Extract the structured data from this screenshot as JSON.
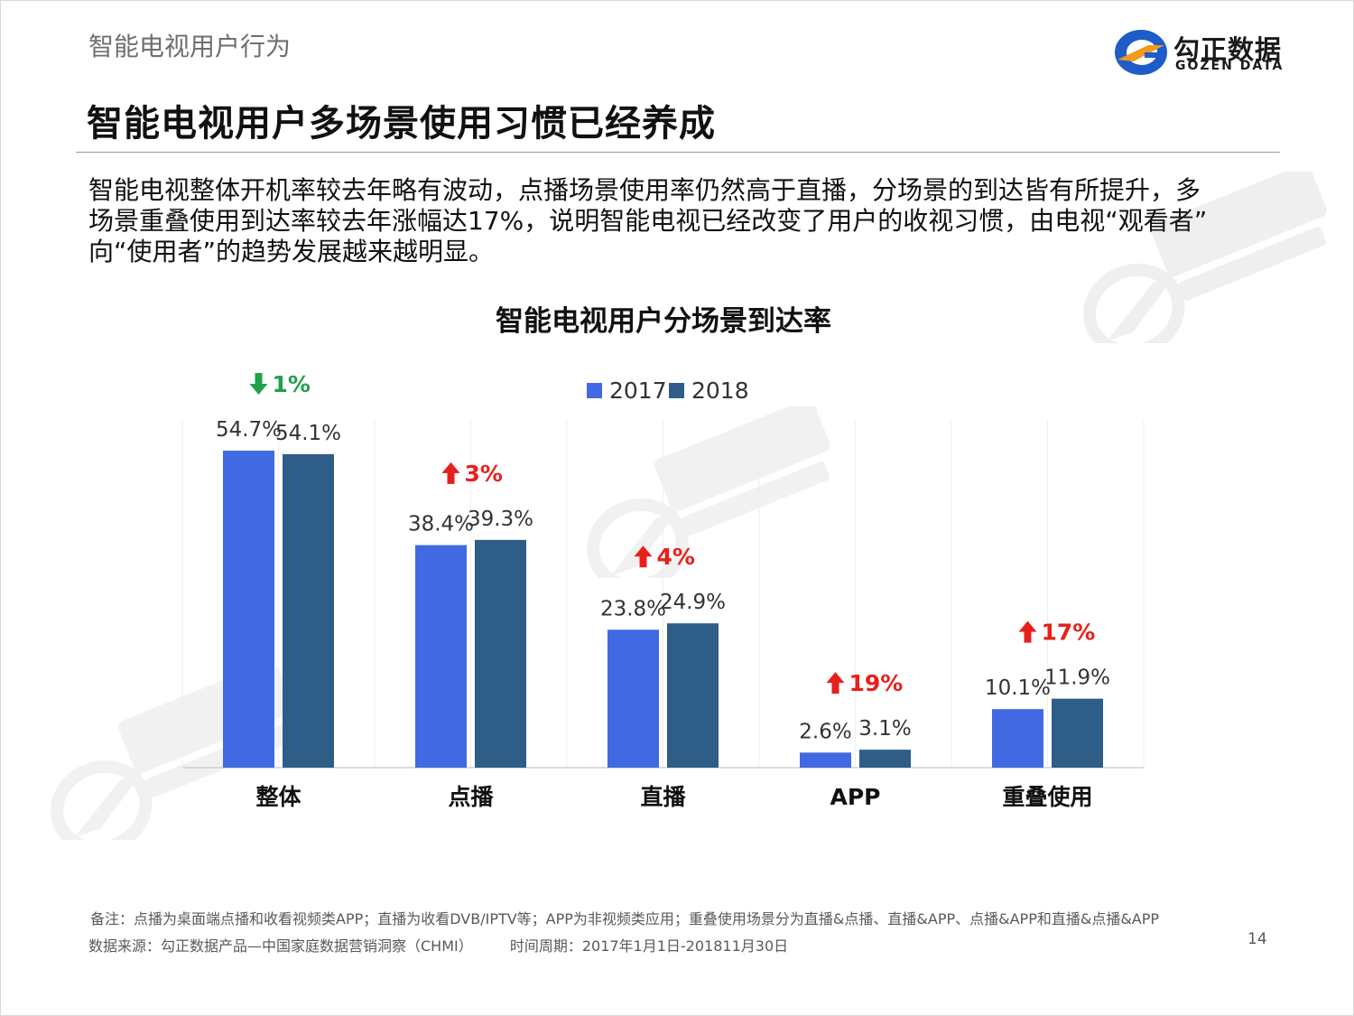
{
  "header": {
    "section_title": "智能电视用户行为",
    "headline": "智能电视用户多场景使用习惯已经养成"
  },
  "logo": {
    "name_cn": "勾正数据",
    "name_en": "GOZEN DATA",
    "brand_colors": {
      "blue": "#1e5cc8",
      "orange": "#f29a1c"
    }
  },
  "description": {
    "lines": [
      "智能电视整体开机率较去年略有波动，点播场景使用率仍然高于直播，分场景的到达皆有所提升，多",
      "场景重叠使用到达率较去年涨幅达17%，说明智能电视已经改变了用户的收视习惯，由电视“观看者”",
      "向“使用者”的趋势发展越来越明显。"
    ]
  },
  "chart_data": {
    "type": "bar",
    "title": "智能电视用户分场景到达率",
    "categories": [
      "整体",
      "点播",
      "直播",
      "APP",
      "重叠使用"
    ],
    "series": [
      {
        "name": "2017",
        "values": [
          54.7,
          38.4,
          23.8,
          2.6,
          10.1
        ],
        "labels": [
          "54.7%",
          "38.4%",
          "23.8%",
          "2.6%",
          "10.1%"
        ],
        "color": "#4169e1"
      },
      {
        "name": "2018",
        "values": [
          54.1,
          39.3,
          24.9,
          3.1,
          11.9
        ],
        "labels": [
          "54.1%",
          "39.3%",
          "24.9%",
          "3.1%",
          "11.9%"
        ],
        "color": "#2e5d87"
      }
    ],
    "changes": [
      {
        "label": "1%",
        "direction": "down",
        "color": "#22a14b"
      },
      {
        "label": "3%",
        "direction": "up",
        "color": "#e8201c"
      },
      {
        "label": "4%",
        "direction": "up",
        "color": "#e8201c"
      },
      {
        "label": "19%",
        "direction": "up",
        "color": "#e8201c"
      },
      {
        "label": "17%",
        "direction": "up",
        "color": "#e8201c"
      }
    ],
    "ylim": [
      0,
      60
    ],
    "legend_position": "top-center",
    "grid": true
  },
  "footer": {
    "note": "备注：点播为桌面端点播和收看视频类APP；直播为收看DVB/IPTV等；APP为非视频类应用；重叠使用场景分为直播&点播、直播&APP、点播&APP和直播&点播&APP",
    "source": "数据来源：勾正数据产品—中国家庭数据营销洞察（CHMI）",
    "period": "时间周期：2017年1月1日-201811月30日",
    "page_number": "14"
  }
}
